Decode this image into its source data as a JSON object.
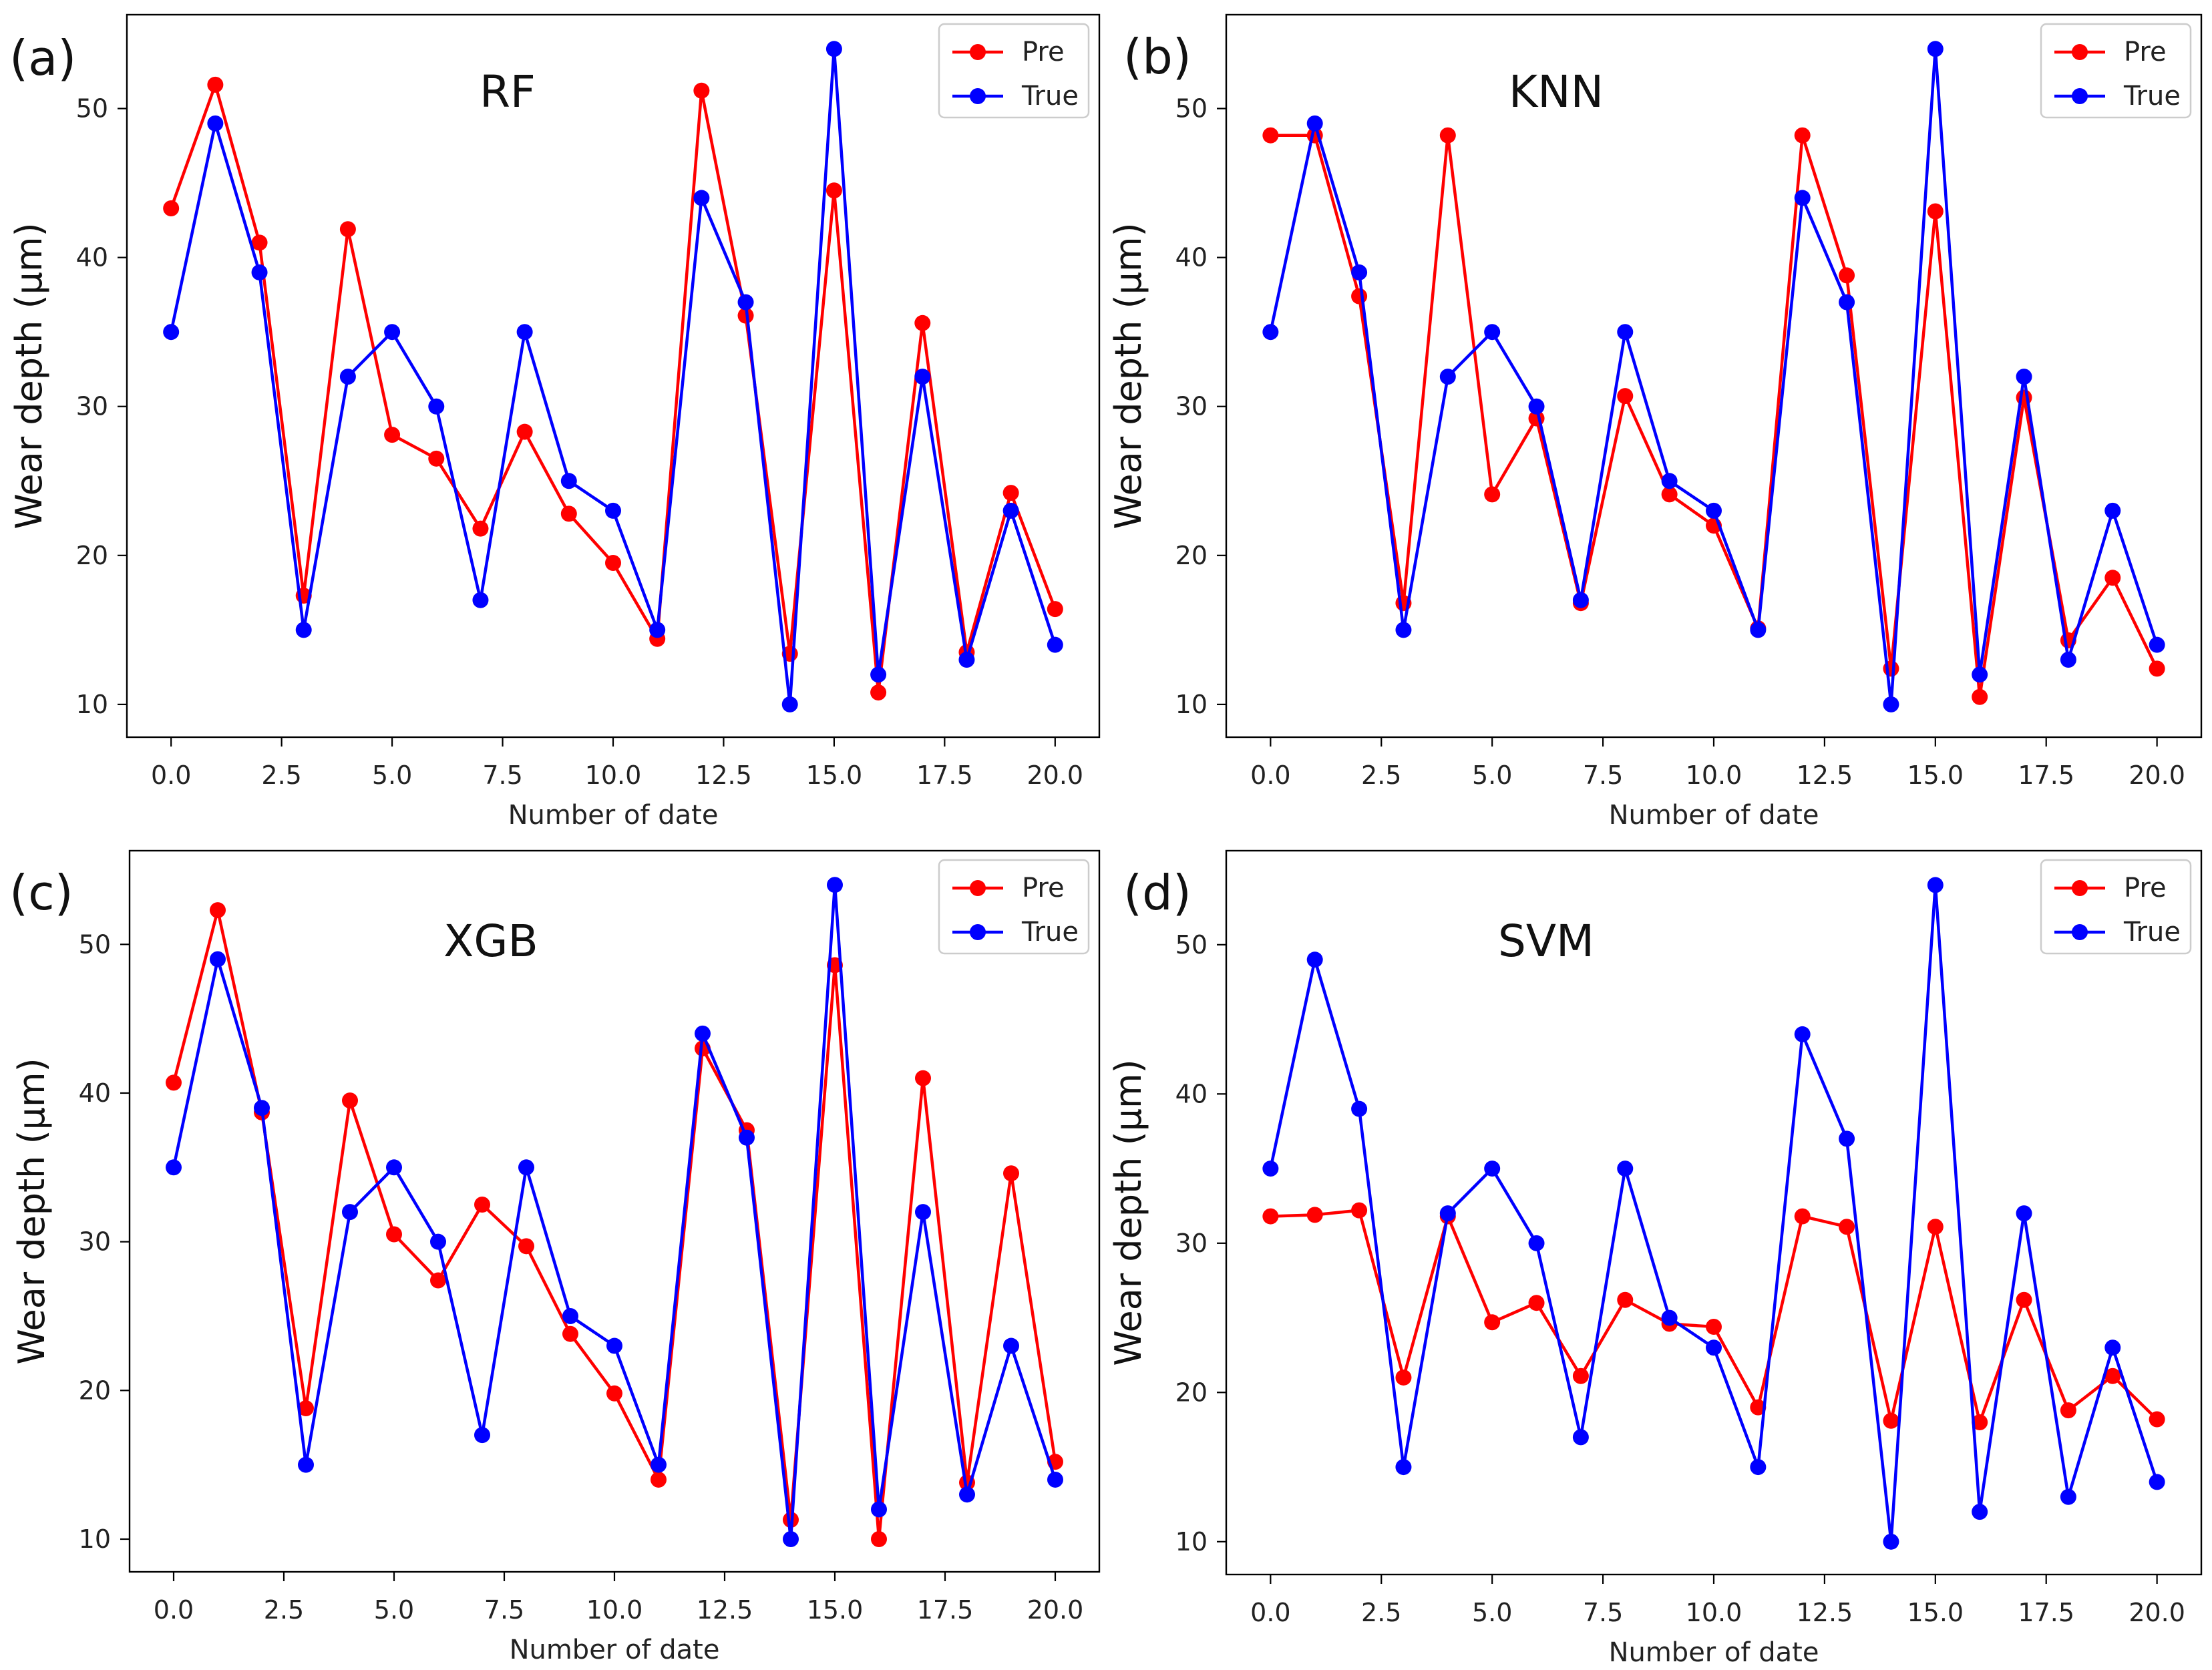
{
  "chart_data": [
    {
      "type": "line",
      "panel_label": "(a)",
      "title": "RF",
      "xlabel": "Number of date",
      "ylabel": "Wear depth (μm)",
      "xlim": [
        -1,
        21
      ],
      "ylim": [
        7.8,
        56.3
      ],
      "xticks": [
        "0.0",
        "2.5",
        "5.0",
        "7.5",
        "10.0",
        "12.5",
        "15.0",
        "17.5",
        "20.0"
      ],
      "yticks": [
        "10",
        "20",
        "30",
        "40",
        "50"
      ],
      "legend": {
        "position": "top-right",
        "entries": [
          "Pre",
          "True"
        ]
      },
      "x": [
        0,
        1,
        2,
        3,
        4,
        5,
        6,
        7,
        8,
        9,
        10,
        11,
        12,
        13,
        14,
        15,
        16,
        17,
        18,
        19,
        20
      ],
      "series": [
        {
          "name": "Pre",
          "color": "#ff0000",
          "values": [
            43.3,
            51.6,
            41.0,
            17.3,
            41.9,
            28.1,
            26.5,
            21.8,
            28.3,
            22.8,
            19.5,
            14.4,
            51.2,
            36.1,
            13.4,
            44.5,
            10.8,
            35.6,
            13.5,
            24.2,
            16.4
          ]
        },
        {
          "name": "True",
          "color": "#0000ff",
          "values": [
            35,
            49,
            39,
            15,
            32,
            35,
            30,
            17,
            35,
            25,
            23,
            15,
            44,
            37,
            10,
            54,
            12,
            32,
            13,
            23,
            14
          ]
        }
      ]
    },
    {
      "type": "line",
      "panel_label": "(b)",
      "title": "KNN",
      "xlabel": "Number of date",
      "ylabel": "Wear depth (μm)",
      "xlim": [
        -1,
        21
      ],
      "ylim": [
        7.8,
        56.3
      ],
      "xticks": [
        "0.0",
        "2.5",
        "5.0",
        "7.5",
        "10.0",
        "12.5",
        "15.0",
        "17.5",
        "20.0"
      ],
      "yticks": [
        "10",
        "20",
        "30",
        "40",
        "50"
      ],
      "legend": {
        "position": "top-right",
        "entries": [
          "Pre",
          "True"
        ]
      },
      "x": [
        0,
        1,
        2,
        3,
        4,
        5,
        6,
        7,
        8,
        9,
        10,
        11,
        12,
        13,
        14,
        15,
        16,
        17,
        18,
        19,
        20
      ],
      "series": [
        {
          "name": "Pre",
          "color": "#ff0000",
          "values": [
            48.2,
            48.2,
            37.4,
            16.8,
            48.2,
            24.1,
            29.2,
            16.8,
            30.7,
            24.1,
            22.0,
            15.1,
            48.2,
            38.8,
            12.4,
            43.1,
            10.5,
            30.6,
            14.3,
            18.5,
            12.4
          ]
        },
        {
          "name": "True",
          "color": "#0000ff",
          "values": [
            35,
            49,
            39,
            15,
            32,
            35,
            30,
            17,
            35,
            25,
            23,
            15,
            44,
            37,
            10,
            54,
            12,
            32,
            13,
            23,
            14
          ]
        }
      ]
    },
    {
      "type": "line",
      "panel_label": "(c)",
      "title": "XGB",
      "xlabel": "Number of date",
      "ylabel": "Wear depth (μm)",
      "xlim": [
        -1,
        21
      ],
      "ylim": [
        7.8,
        56.3
      ],
      "xticks": [
        "0.0",
        "2.5",
        "5.0",
        "7.5",
        "10.0",
        "12.5",
        "15.0",
        "17.5",
        "20.0"
      ],
      "yticks": [
        "10",
        "20",
        "30",
        "40",
        "50"
      ],
      "legend": {
        "position": "top-right",
        "entries": [
          "Pre",
          "True"
        ]
      },
      "x": [
        0,
        1,
        2,
        3,
        4,
        5,
        6,
        7,
        8,
        9,
        10,
        11,
        12,
        13,
        14,
        15,
        16,
        17,
        18,
        19,
        20
      ],
      "series": [
        {
          "name": "Pre",
          "color": "#ff0000",
          "values": [
            40.7,
            52.3,
            38.7,
            18.8,
            39.5,
            30.5,
            27.4,
            32.5,
            29.7,
            23.8,
            19.8,
            14.0,
            43.0,
            37.5,
            11.3,
            48.6,
            10.0,
            41.0,
            13.8,
            34.6,
            15.2
          ]
        },
        {
          "name": "True",
          "color": "#0000ff",
          "values": [
            35,
            49,
            39,
            15,
            32,
            35,
            30,
            17,
            35,
            25,
            23,
            15,
            44,
            37,
            10,
            54,
            12,
            32,
            13,
            23,
            14
          ]
        }
      ]
    },
    {
      "type": "line",
      "panel_label": "(d)",
      "title": "SVM",
      "xlabel": "Number of date",
      "ylabel": "Wear depth (μm)",
      "xlim": [
        -1,
        21
      ],
      "ylim": [
        7.8,
        56.3
      ],
      "xticks": [
        "0.0",
        "2.5",
        "5.0",
        "7.5",
        "10.0",
        "12.5",
        "15.0",
        "17.5",
        "20.0"
      ],
      "yticks": [
        "10",
        "20",
        "30",
        "40",
        "50"
      ],
      "legend": {
        "position": "top-right",
        "entries": [
          "Pre",
          "True"
        ]
      },
      "x": [
        0,
        1,
        2,
        3,
        4,
        5,
        6,
        7,
        8,
        9,
        10,
        11,
        12,
        13,
        14,
        15,
        16,
        17,
        18,
        19,
        20
      ],
      "series": [
        {
          "name": "Pre",
          "color": "#ff0000",
          "values": [
            31.8,
            31.9,
            32.2,
            21.0,
            31.8,
            24.7,
            26.0,
            21.1,
            26.2,
            24.6,
            24.4,
            19.0,
            31.8,
            31.1,
            18.1,
            31.1,
            18.0,
            26.2,
            18.8,
            21.1,
            18.2
          ]
        },
        {
          "name": "True",
          "color": "#0000ff",
          "values": [
            35,
            49,
            39,
            15,
            32,
            35,
            30,
            17,
            35,
            25,
            23,
            15,
            44,
            37,
            10,
            54,
            12,
            32,
            13,
            23,
            14
          ]
        }
      ]
    }
  ]
}
